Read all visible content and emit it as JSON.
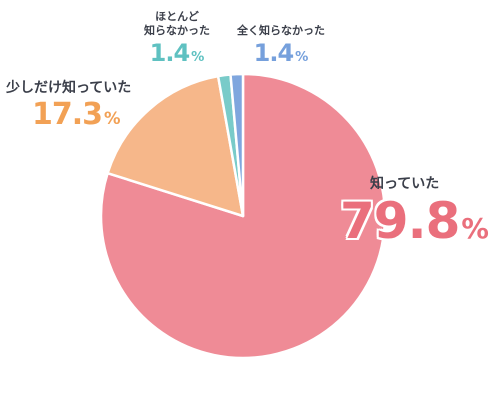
{
  "chart_data": {
    "type": "pie",
    "unit": "%",
    "start_angle_deg": 0,
    "slices": [
      {
        "label": "知っていた",
        "value": 79.8,
        "color": "#ef8b96",
        "label_color": "#ea6f7c"
      },
      {
        "label": "少しだけ知っていた",
        "value": 17.3,
        "color": "#f6b78a",
        "label_color": "#f2a155"
      },
      {
        "label": "ほとんど\n知らなかった",
        "value": 1.4,
        "color": "#79cbc9",
        "label_color": "#5fc1c1"
      },
      {
        "label": "全く知らなかった",
        "value": 1.4,
        "color": "#7fa6de",
        "label_color": "#76a0dc"
      }
    ]
  }
}
